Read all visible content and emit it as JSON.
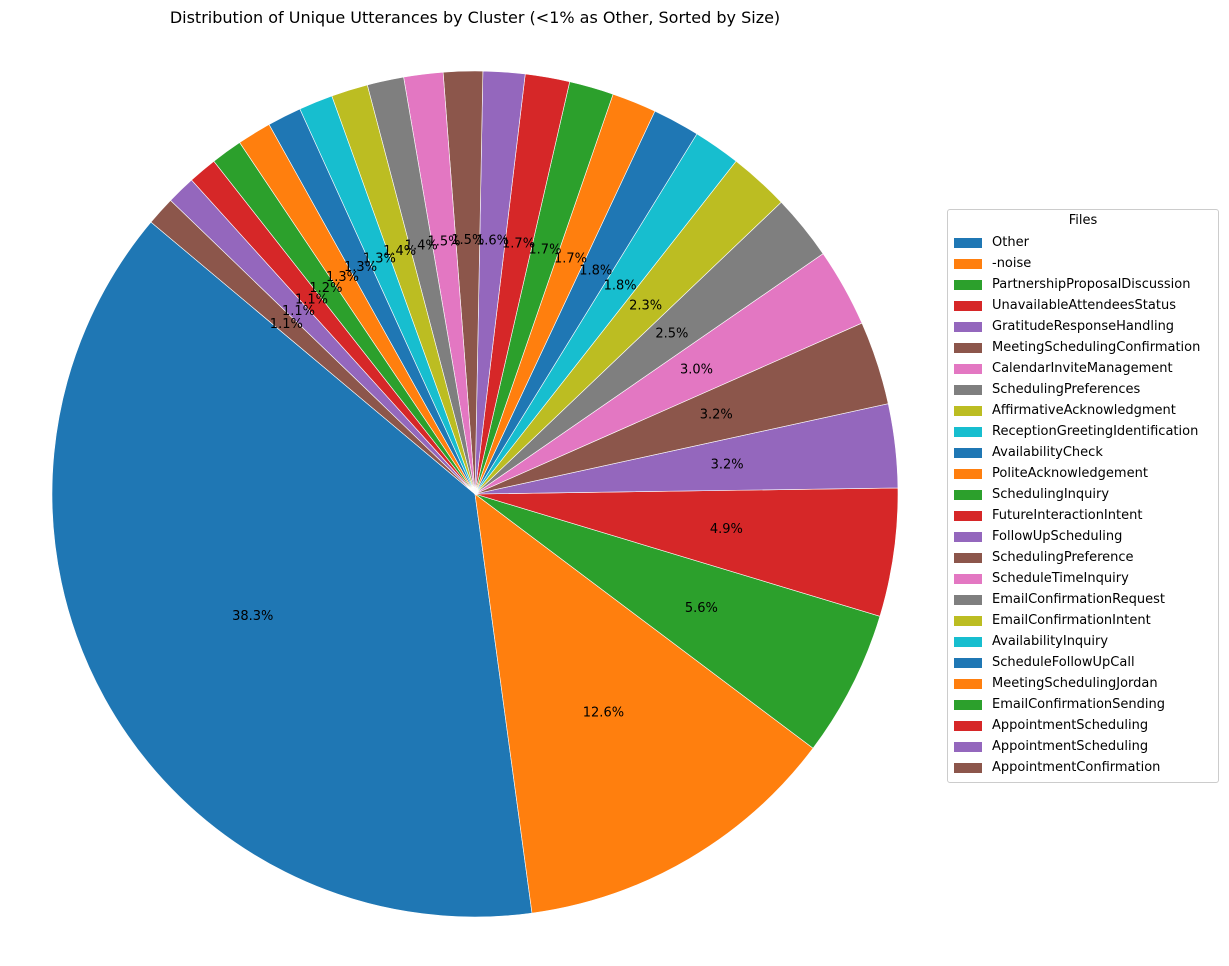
{
  "chart_data": {
    "type": "pie",
    "title": "Distribution of Unique Utterances by Cluster (<1% as Other, Sorted by Size)",
    "legend_title": "Files",
    "legend_position": "right",
    "start_angle_deg": 140,
    "direction": "counterclockwise",
    "slices": [
      {
        "label": "Other",
        "value": 38.3,
        "display": "38.3%",
        "color": "#1f77b4"
      },
      {
        "label": "-noise",
        "value": 12.6,
        "display": "12.6%",
        "color": "#ff7f0e"
      },
      {
        "label": "PartnershipProposalDiscussion",
        "value": 5.6,
        "display": "5.6%",
        "color": "#2ca02c"
      },
      {
        "label": "UnavailableAttendeesStatus",
        "value": 4.9,
        "display": "4.9%",
        "color": "#d62728"
      },
      {
        "label": "GratitudeResponseHandling",
        "value": 3.2,
        "display": "3.2%",
        "color": "#9467bd"
      },
      {
        "label": "MeetingSchedulingConfirmation",
        "value": 3.2,
        "display": "3.2%",
        "color": "#8c564b"
      },
      {
        "label": "CalendarInviteManagement",
        "value": 3.0,
        "display": "3.0%",
        "color": "#e377c2"
      },
      {
        "label": "SchedulingPreferences",
        "value": 2.5,
        "display": "2.5%",
        "color": "#7f7f7f"
      },
      {
        "label": "AffirmativeAcknowledgment",
        "value": 2.3,
        "display": "2.3%",
        "color": "#bcbd22"
      },
      {
        "label": "ReceptionGreetingIdentification",
        "value": 1.8,
        "display": "1.8%",
        "color": "#17becf"
      },
      {
        "label": "AvailabilityCheck",
        "value": 1.8,
        "display": "1.8%",
        "color": "#1f77b4"
      },
      {
        "label": "PoliteAcknowledgement",
        "value": 1.7,
        "display": "1.7%",
        "color": "#ff7f0e"
      },
      {
        "label": "SchedulingInquiry",
        "value": 1.7,
        "display": "1.7%",
        "color": "#2ca02c"
      },
      {
        "label": "FutureInteractionIntent",
        "value": 1.7,
        "display": "1.7%",
        "color": "#d62728"
      },
      {
        "label": "FollowUpScheduling",
        "value": 1.6,
        "display": "1.6%",
        "color": "#9467bd"
      },
      {
        "label": "SchedulingPreference",
        "value": 1.5,
        "display": "1.5%",
        "color": "#8c564b"
      },
      {
        "label": "ScheduleTimeInquiry",
        "value": 1.5,
        "display": "1.5%",
        "color": "#e377c2"
      },
      {
        "label": "EmailConfirmationRequest",
        "value": 1.4,
        "display": "1.4%",
        "color": "#7f7f7f"
      },
      {
        "label": "EmailConfirmationIntent",
        "value": 1.4,
        "display": "1.4%",
        "color": "#bcbd22"
      },
      {
        "label": "AvailabilityInquiry",
        "value": 1.3,
        "display": "1.3%",
        "color": "#17becf"
      },
      {
        "label": "ScheduleFollowUpCall",
        "value": 1.3,
        "display": "1.3%",
        "color": "#1f77b4"
      },
      {
        "label": "MeetingSchedulingJordan",
        "value": 1.3,
        "display": "1.3%",
        "color": "#ff7f0e"
      },
      {
        "label": "EmailConfirmationSending",
        "value": 1.2,
        "display": "1.2%",
        "color": "#2ca02c"
      },
      {
        "label": "AppointmentScheduling",
        "value": 1.1,
        "display": "1.1%",
        "color": "#d62728"
      },
      {
        "label": "AppointmentScheduling",
        "value": 1.1,
        "display": "1.1%",
        "color": "#9467bd"
      },
      {
        "label": "AppointmentConfirmation",
        "value": 1.1,
        "display": "1.1%",
        "color": "#8c564b"
      }
    ]
  }
}
